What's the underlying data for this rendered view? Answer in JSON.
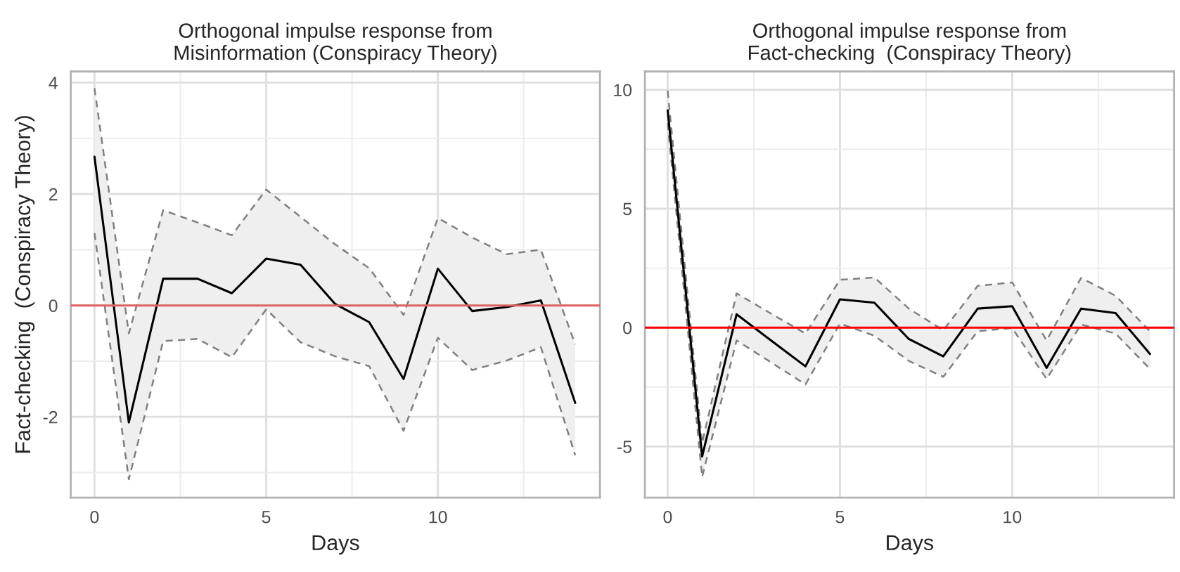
{
  "chart_data": [
    {
      "type": "line",
      "title": "Orthogonal impulse response from\nMisinformation (Conspiracy Theory)",
      "xlabel": "Days",
      "ylabel": "Fact-checking  (Conspiracy Theory)",
      "x": [
        0,
        1,
        2,
        3,
        4,
        5,
        6,
        7,
        8,
        9,
        10,
        11,
        12,
        13,
        14
      ],
      "series": [
        {
          "color": "#000000",
          "values": [
            2.67,
            -2.1,
            0.48,
            0.48,
            0.22,
            0.84,
            0.73,
            0.03,
            -0.3,
            -1.32,
            0.66,
            -0.1,
            -0.03,
            0.09,
            -1.75
          ],
          "lower": [
            1.3,
            -3.12,
            -0.64,
            -0.6,
            -0.93,
            -0.07,
            -0.66,
            -0.91,
            -1.09,
            -2.25,
            -0.58,
            -1.16,
            -0.99,
            -0.75,
            -2.69
          ],
          "upper": [
            3.9,
            -0.5,
            1.71,
            1.49,
            1.26,
            2.08,
            1.59,
            1.1,
            0.67,
            -0.17,
            1.57,
            1.22,
            0.92,
            1.0,
            -0.7
          ]
        },
        {
          "color": "#808080",
          "line_style": "dashed",
          "values": [
            1.3,
            -3.12,
            -0.64,
            -0.6,
            -0.93,
            -0.07,
            -0.66,
            -0.91,
            -1.09,
            -2.25,
            -0.58,
            -1.16,
            -0.99,
            -0.75,
            -2.69
          ]
        },
        {
          "color": "#808080",
          "line_style": "dashed",
          "values": [
            3.9,
            -0.5,
            1.71,
            1.49,
            1.26,
            2.08,
            1.59,
            1.1,
            0.67,
            -0.17,
            1.57,
            1.22,
            0.92,
            1.0,
            -0.7
          ]
        }
      ],
      "xlim": [
        -0.69,
        14.72
      ],
      "xticks": [
        0,
        5,
        10
      ],
      "ylim": [
        -3.45,
        4.2
      ],
      "yticks": [
        -2,
        0,
        2,
        4
      ],
      "ref_lines": [
        {
          "axis": "y",
          "value": 0,
          "color": "#e06060"
        }
      ],
      "grid": true
    },
    {
      "type": "line",
      "title": "Orthogonal impulse response from\nFact-checking  (Conspiracy Theory)",
      "xlabel": "Days",
      "x": [
        0,
        1,
        2,
        3,
        4,
        5,
        6,
        7,
        8,
        9,
        10,
        11,
        12,
        13,
        14
      ],
      "series": [
        {
          "color": "#000000",
          "values": [
            9.14,
            -5.42,
            0.56,
            -0.54,
            -1.63,
            1.19,
            1.05,
            -0.48,
            -1.21,
            0.8,
            0.9,
            -1.69,
            0.8,
            0.61,
            -1.11
          ],
          "lower": [
            8.6,
            -6.28,
            -0.54,
            -1.46,
            -2.39,
            0.17,
            -0.34,
            -1.4,
            -2.07,
            -0.15,
            -0.02,
            -2.16,
            0.13,
            -0.25,
            -1.74
          ],
          "upper": [
            9.96,
            -4.85,
            1.44,
            0.59,
            -0.25,
            2.01,
            2.11,
            0.8,
            -0.11,
            1.76,
            1.9,
            -0.54,
            2.09,
            1.34,
            -0.15
          ]
        },
        {
          "color": "#808080",
          "line_style": "dashed",
          "values": [
            8.6,
            -6.28,
            -0.54,
            -1.46,
            -2.39,
            0.17,
            -0.34,
            -1.4,
            -2.07,
            -0.15,
            -0.02,
            -2.16,
            0.13,
            -0.25,
            -1.74
          ]
        },
        {
          "color": "#808080",
          "line_style": "dashed",
          "values": [
            9.96,
            -4.85,
            1.44,
            0.59,
            -0.25,
            2.01,
            2.11,
            0.8,
            -0.11,
            1.76,
            1.9,
            -0.54,
            2.09,
            1.34,
            -0.15
          ]
        }
      ],
      "xlim": [
        -0.66,
        14.7
      ],
      "xticks": [
        0,
        5,
        10
      ],
      "ylim": [
        -7.15,
        10.77
      ],
      "yticks": [
        -5,
        0,
        5,
        10
      ],
      "ref_lines": [
        {
          "axis": "y",
          "value": 0,
          "color": "#ff0000"
        }
      ],
      "grid": true
    }
  ]
}
